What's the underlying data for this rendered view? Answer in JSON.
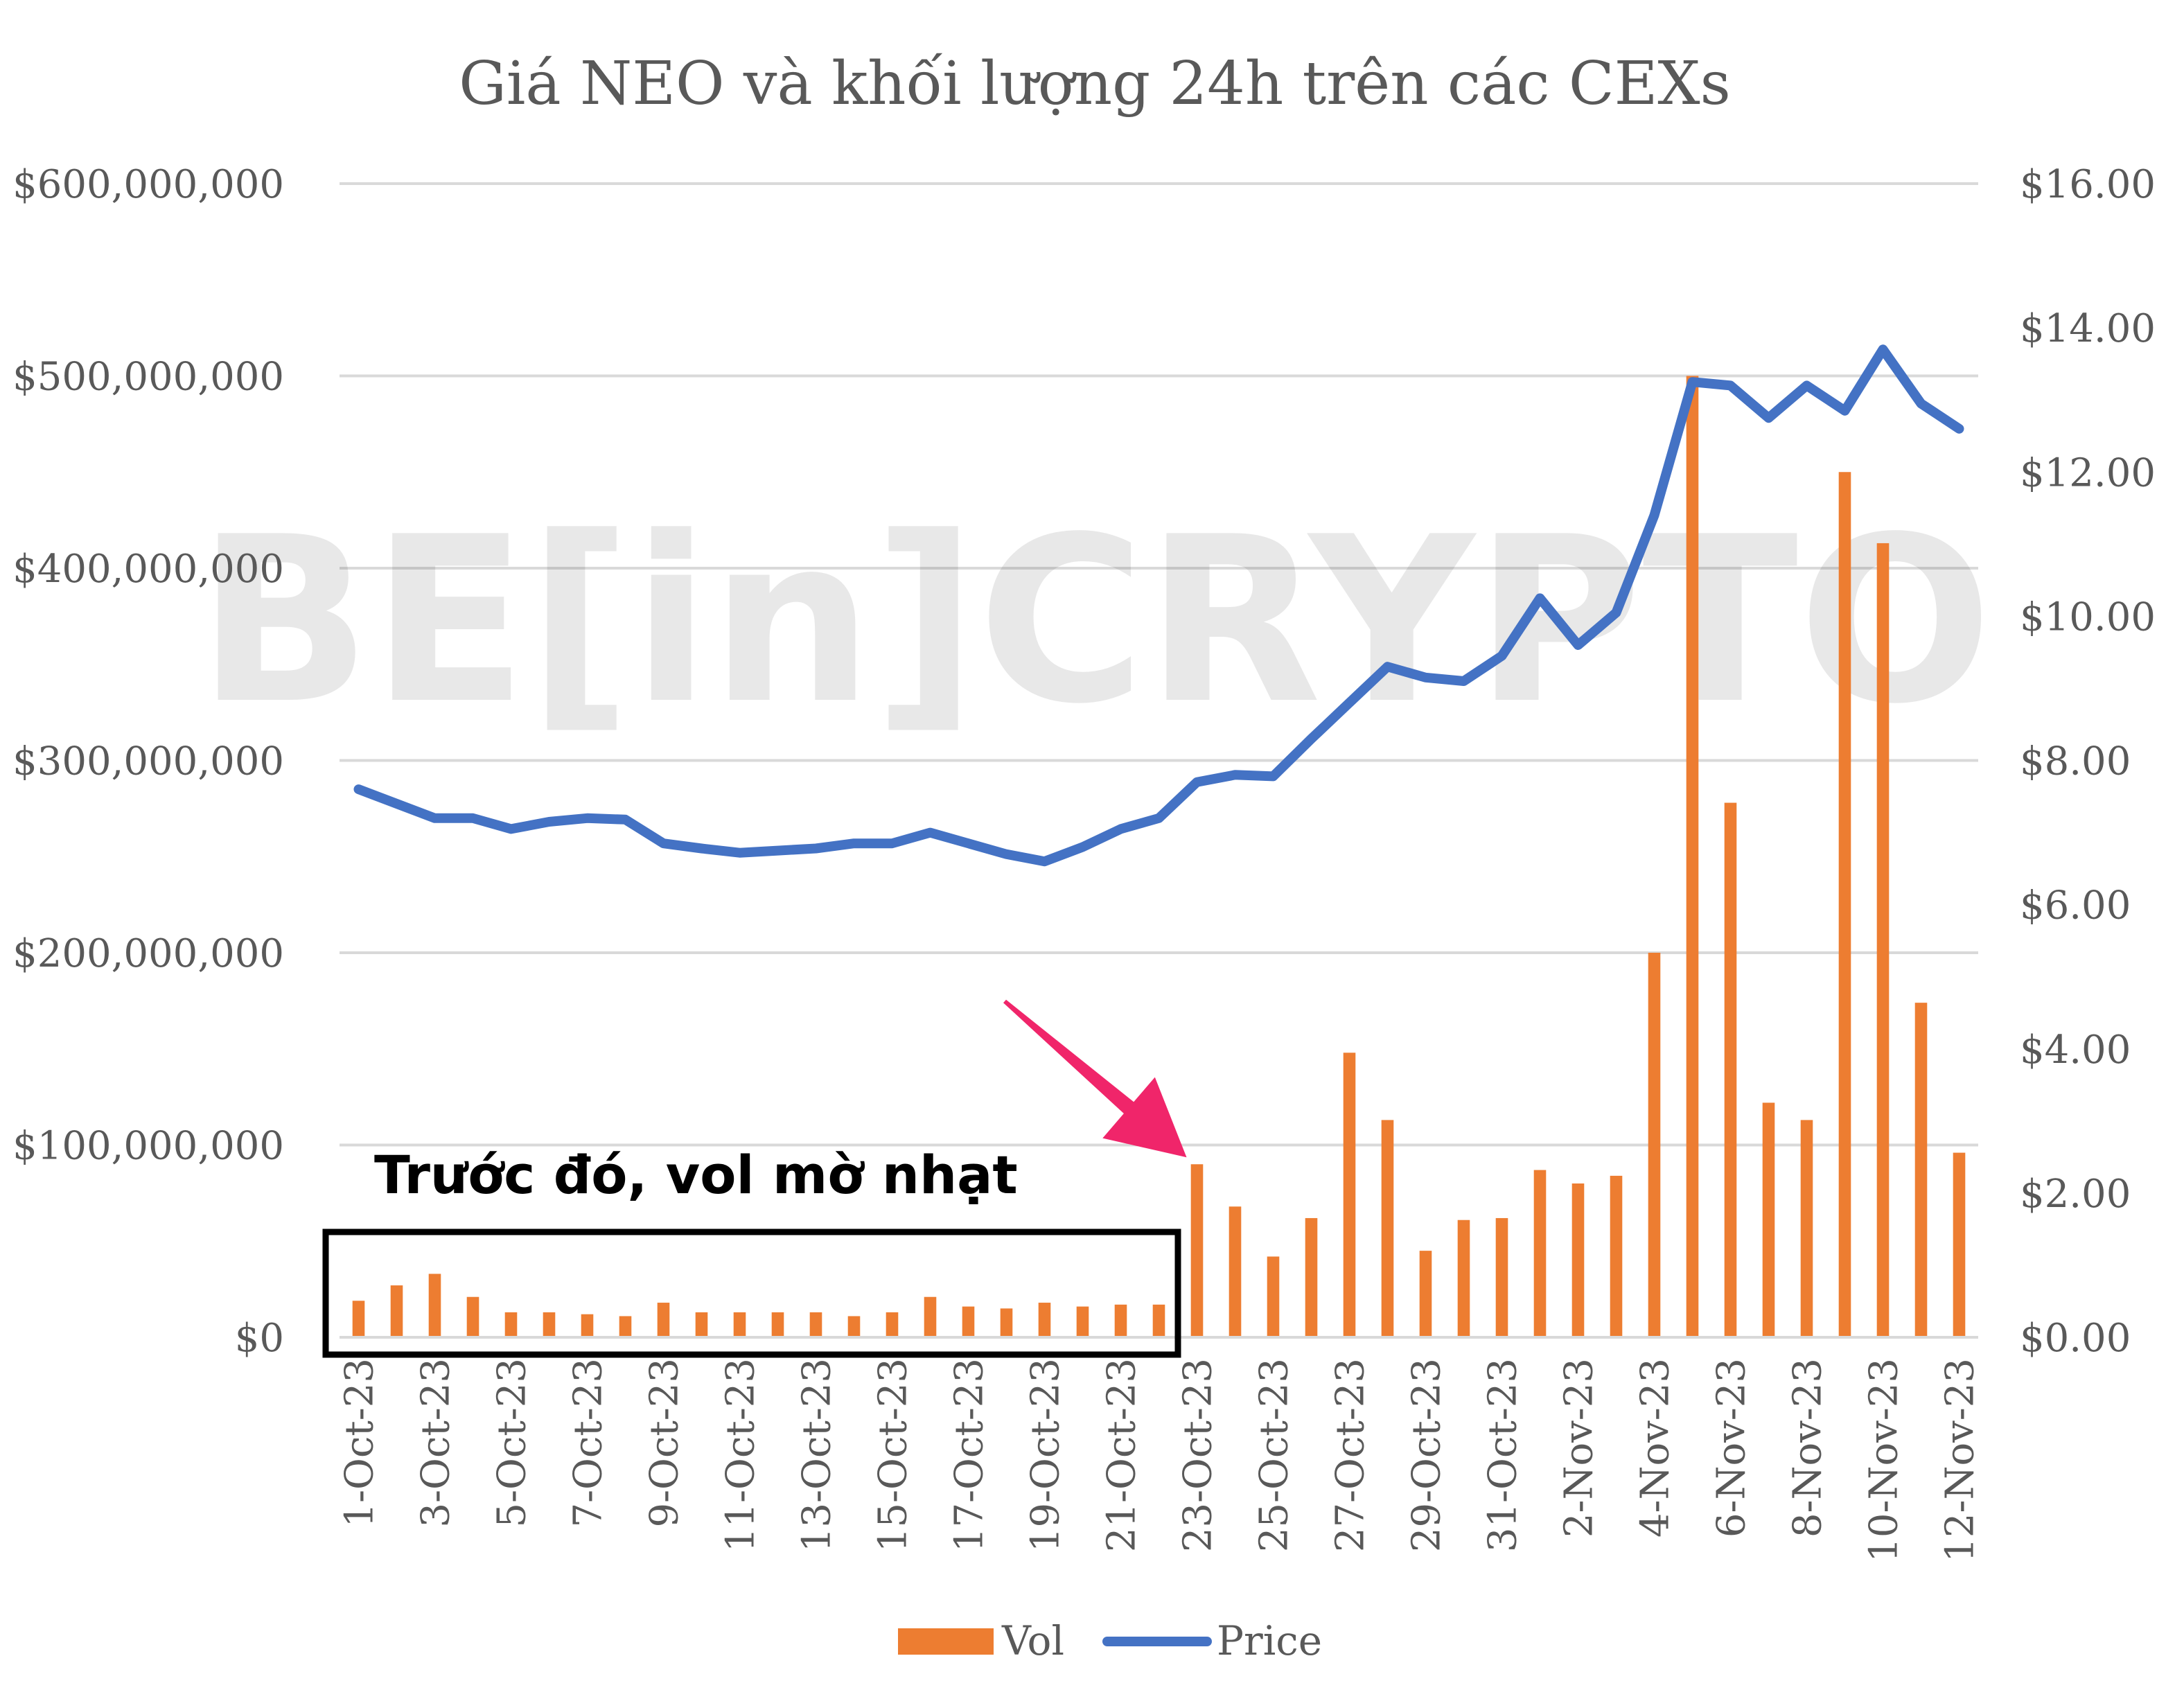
{
  "chart_data": {
    "type": "bar",
    "title": "Giá NEO và khối lượng 24h trên các CEXs",
    "categories": [
      "1-Oct-23",
      "2-Oct-23",
      "3-Oct-23",
      "4-Oct-23",
      "5-Oct-23",
      "6-Oct-23",
      "7-Oct-23",
      "8-Oct-23",
      "9-Oct-23",
      "10-Oct-23",
      "11-Oct-23",
      "12-Oct-23",
      "13-Oct-23",
      "14-Oct-23",
      "15-Oct-23",
      "16-Oct-23",
      "17-Oct-23",
      "18-Oct-23",
      "19-Oct-23",
      "20-Oct-23",
      "21-Oct-23",
      "22-Oct-23",
      "23-Oct-23",
      "24-Oct-23",
      "25-Oct-23",
      "26-Oct-23",
      "27-Oct-23",
      "28-Oct-23",
      "29-Oct-23",
      "30-Oct-23",
      "31-Oct-23",
      "1-Nov-23",
      "2-Nov-23",
      "3-Nov-23",
      "4-Nov-23",
      "5-Nov-23",
      "6-Nov-23",
      "7-Nov-23",
      "8-Nov-23",
      "9-Nov-23",
      "10-Nov-23",
      "11-Nov-23",
      "12-Nov-23"
    ],
    "x_tick_labels": [
      "1-Oct-23",
      "3-Oct-23",
      "5-Oct-23",
      "7-Oct-23",
      "9-Oct-23",
      "11-Oct-23",
      "13-Oct-23",
      "15-Oct-23",
      "17-Oct-23",
      "19-Oct-23",
      "21-Oct-23",
      "23-Oct-23",
      "25-Oct-23",
      "27-Oct-23",
      "29-Oct-23",
      "31-Oct-23",
      "2-Nov-23",
      "4-Nov-23",
      "6-Nov-23",
      "8-Nov-23",
      "10-Nov-23",
      "12-Nov-23"
    ],
    "series": [
      {
        "name": "Vol",
        "type": "bar",
        "axis": "left",
        "color": "#ED7D31",
        "values": [
          19000000,
          27000000,
          33000000,
          21000000,
          13000000,
          13000000,
          12000000,
          11000000,
          18000000,
          13000000,
          13000000,
          13000000,
          13000000,
          11000000,
          13000000,
          21000000,
          16000000,
          15000000,
          18000000,
          16000000,
          17000000,
          17000000,
          90000000,
          68000000,
          42000000,
          62000000,
          148000000,
          113000000,
          45000000,
          61000000,
          62000000,
          87000000,
          80000000,
          84000000,
          200000000,
          500000000,
          278000000,
          122000000,
          113000000,
          450000000,
          413000000,
          174000000,
          96000000
        ]
      },
      {
        "name": "Price",
        "type": "line",
        "axis": "right",
        "color": "#4472C4",
        "values": [
          7.6,
          7.4,
          7.2,
          7.2,
          7.05,
          7.15,
          7.2,
          7.18,
          6.85,
          6.78,
          6.72,
          6.75,
          6.78,
          6.85,
          6.85,
          7.0,
          6.85,
          6.7,
          6.6,
          6.8,
          7.05,
          7.2,
          7.7,
          7.8,
          7.78,
          8.3,
          8.8,
          9.3,
          9.15,
          9.1,
          9.45,
          10.25,
          9.6,
          10.05,
          11.4,
          13.25,
          13.2,
          12.75,
          13.2,
          12.85,
          13.7,
          12.95,
          12.6
        ]
      }
    ],
    "y_left": {
      "min": 0,
      "max": 600000000,
      "ticks": [
        "$0",
        "$100,000,000",
        "$200,000,000",
        "$300,000,000",
        "$400,000,000",
        "$500,000,000",
        "$600,000,000"
      ]
    },
    "y_right": {
      "min": 0,
      "max": 16,
      "ticks": [
        "$0.00",
        "$2.00",
        "$4.00",
        "$6.00",
        "$8.00",
        "$10.00",
        "$12.00",
        "$14.00",
        "$16.00"
      ]
    },
    "legend_position": "bottom",
    "grid": true,
    "annotation": {
      "text": "Trước đó, vol mờ nhạt",
      "box_range": [
        "1-Oct-23",
        "22-Oct-23"
      ],
      "arrow_color": "#F0256A",
      "arrow_points_to": "23-Oct-23"
    },
    "watermark": "BE[in]CRYPTO"
  }
}
